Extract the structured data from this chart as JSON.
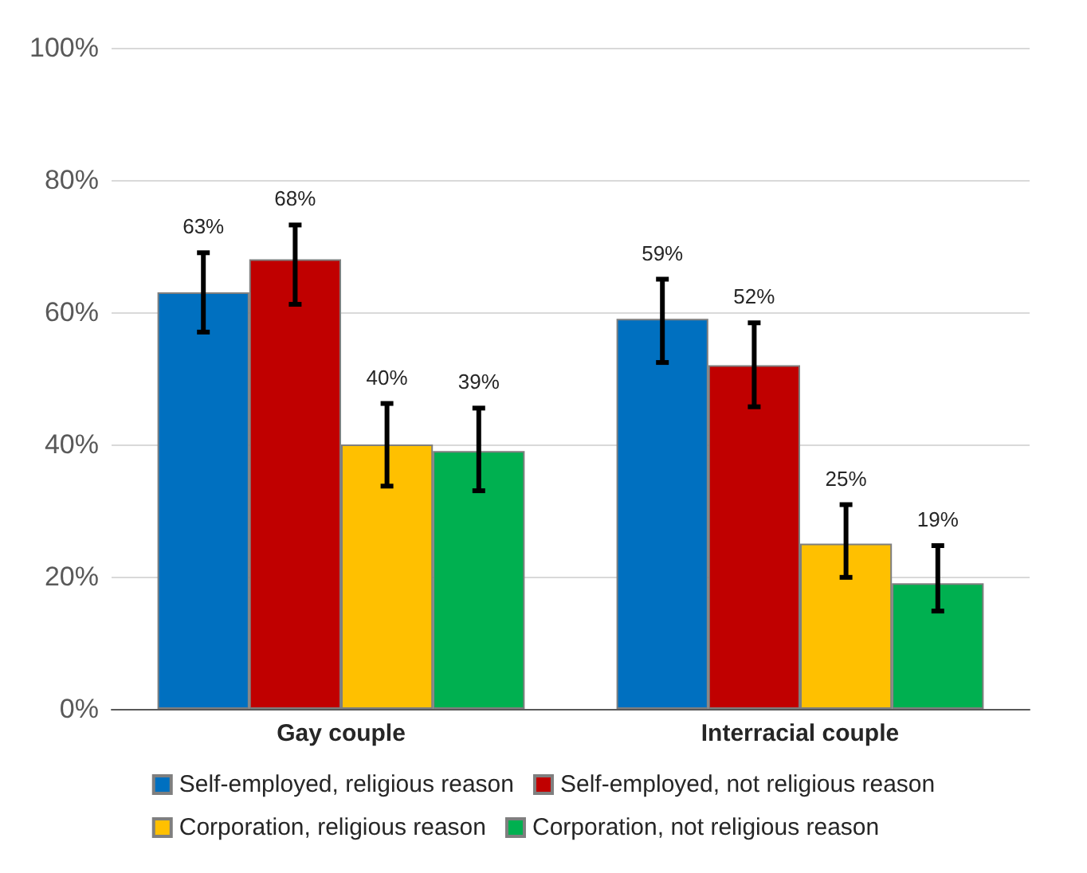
{
  "chart_data": {
    "type": "bar",
    "categories": [
      "Gay couple",
      "Interracial couple"
    ],
    "series": [
      {
        "name": "Self-employed, religious reason",
        "color": "#0070c0",
        "values": [
          63,
          59
        ],
        "value_labels": [
          "63%",
          "59%"
        ],
        "errors": [
          [
            57,
            69
          ],
          [
            52.4,
            65
          ]
        ]
      },
      {
        "name": "Self-employed, not religious reason",
        "color": "#c00000",
        "values": [
          68,
          52
        ],
        "value_labels": [
          "68%",
          "52%"
        ],
        "errors": [
          [
            61.2,
            73.2
          ],
          [
            45.7,
            58.4
          ]
        ]
      },
      {
        "name": "Corporation, religious reason",
        "color": "#ffc000",
        "values": [
          40,
          25
        ],
        "value_labels": [
          "40%",
          "25%"
        ],
        "errors": [
          [
            33.7,
            46.2
          ],
          [
            19.9,
            30.9
          ]
        ]
      },
      {
        "name": "Corporation, not religious reason",
        "color": "#00b050",
        "values": [
          39,
          19
        ],
        "value_labels": [
          "39%",
          "19%"
        ],
        "errors": [
          [
            33,
            45.5
          ],
          [
            14.8,
            24.7
          ]
        ]
      }
    ],
    "ylim": [
      0,
      100
    ],
    "yticks": [
      {
        "value": 0,
        "label": "0%"
      },
      {
        "value": 20,
        "label": "20%"
      },
      {
        "value": 40,
        "label": "40%"
      },
      {
        "value": 60,
        "label": "60%"
      },
      {
        "value": 80,
        "label": "80%"
      },
      {
        "value": 100,
        "label": "100%"
      }
    ],
    "grid": "y",
    "legend": "bottom"
  }
}
